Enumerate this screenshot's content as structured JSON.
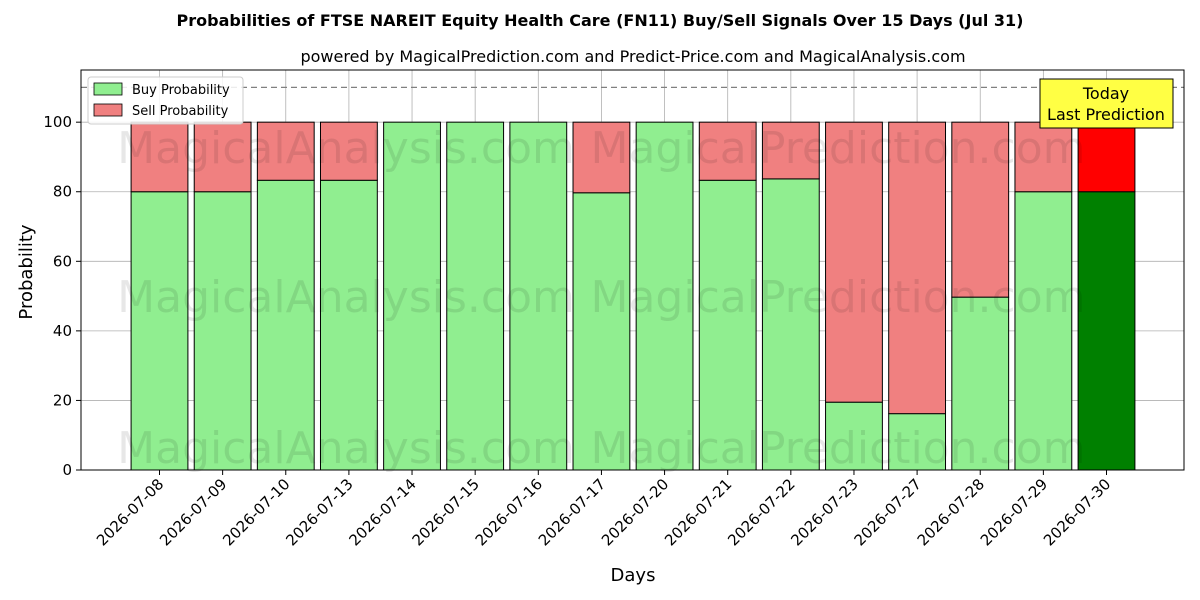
{
  "colors": {
    "buy": "#90EE90",
    "sell": "#F08080",
    "buy_last": "#008000",
    "sell_last": "#FF0000",
    "annotation_bg": "#FFFF44",
    "reference_line": "#808080",
    "grid": "#b0b0b0"
  },
  "watermarks": {
    "left": "MagicalAnalysis.com",
    "right": "MagicalPrediction.com"
  },
  "annotation": {
    "line1": "Today",
    "line2": "Last Prediction"
  },
  "chart_data": {
    "type": "bar",
    "stacked": true,
    "title": "Probabilities of FTSE NAREIT Equity Health Care (FN11) Buy/Sell Signals Over 15 Days (Jul 31)",
    "subtitle": "powered by MagicalPrediction.com and Predict-Price.com and MagicalAnalysis.com",
    "xlabel": "Days",
    "ylabel": "Probability",
    "ylim": [
      0,
      115
    ],
    "yticks": [
      0,
      20,
      40,
      60,
      80,
      100
    ],
    "reference_line": 110,
    "grid": true,
    "legend_position": "top-left",
    "categories": [
      "2026-07-08",
      "2026-07-09",
      "2026-07-10",
      "2026-07-13",
      "2026-07-14",
      "2026-07-15",
      "2026-07-16",
      "2026-07-17",
      "2026-07-20",
      "2026-07-21",
      "2026-07-22",
      "2026-07-23",
      "2026-07-27",
      "2026-07-28",
      "2026-07-29",
      "2026-07-30"
    ],
    "series": [
      {
        "name": "Buy Probability",
        "values": [
          80,
          80,
          83.3,
          83.3,
          100,
          100,
          100,
          79.7,
          100,
          83.3,
          83.7,
          19.5,
          16.2,
          49.7,
          80,
          80
        ]
      },
      {
        "name": "Sell Probability",
        "values": [
          20,
          20,
          16.7,
          16.7,
          0,
          0,
          0,
          20.3,
          0,
          16.7,
          16.3,
          80.5,
          83.8,
          50.3,
          20,
          20
        ]
      }
    ]
  }
}
